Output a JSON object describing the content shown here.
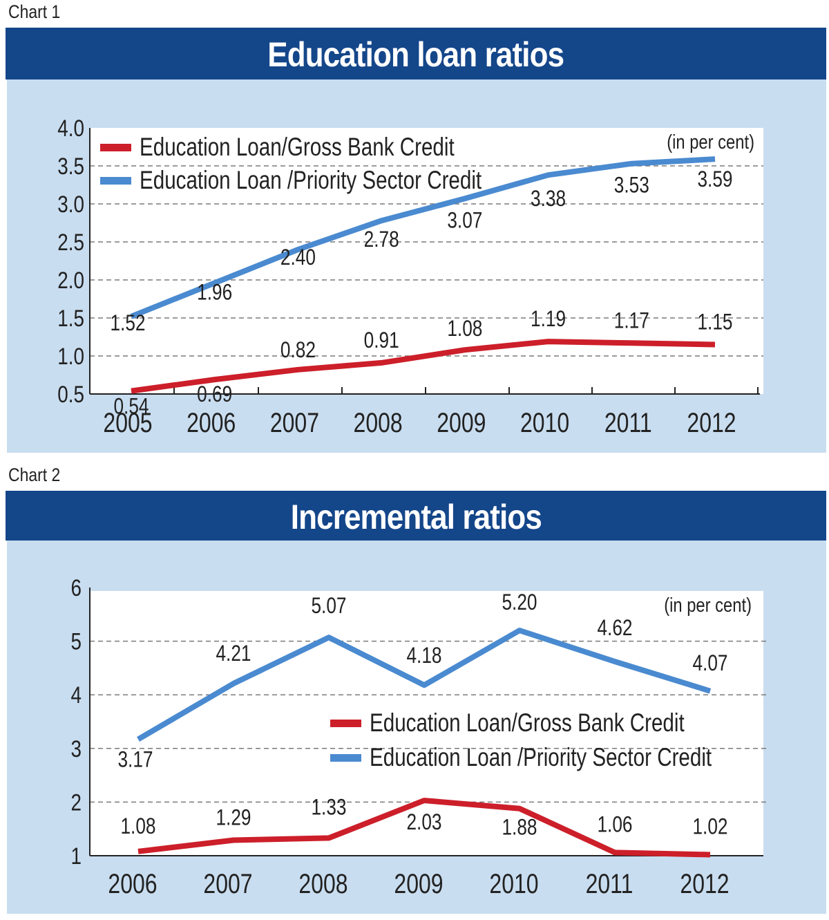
{
  "chart_data": [
    {
      "type": "line",
      "label": "Chart 1",
      "title": "Education loan ratios",
      "unit_note": "(in per cent)",
      "categories": [
        "2005",
        "2006",
        "2007",
        "2008",
        "2009",
        "2010",
        "2011",
        "2012"
      ],
      "ylim": [
        0.5,
        4.0
      ],
      "yticks": [
        "4.0",
        "3.5",
        "3.0",
        "2.5",
        "2.0",
        "1.5",
        "1.0",
        "0.5"
      ],
      "grid": true,
      "legend_position": "top-left",
      "series": [
        {
          "name": "Education Loan/Gross Bank Credit",
          "color": "#cc1f2a",
          "values": [
            0.54,
            0.69,
            0.82,
            0.91,
            1.08,
            1.19,
            1.17,
            1.15
          ],
          "labels": [
            "0.54",
            "0.69",
            "0.82",
            "0.91",
            "1.08",
            "1.19",
            "1.17",
            "1.15"
          ]
        },
        {
          "name": "Education Loan /Priority Sector Credit",
          "color": "#4a8ad0",
          "values": [
            1.52,
            1.96,
            2.4,
            2.78,
            3.07,
            3.38,
            3.53,
            3.59
          ],
          "labels": [
            "1.52",
            "1.96",
            "2.40",
            "2.78",
            "3.07",
            "3.38",
            "3.53",
            "3.59"
          ]
        }
      ]
    },
    {
      "type": "line",
      "label": "Chart 2",
      "title": "Incremental ratios",
      "unit_note": "(in per cent)",
      "categories": [
        "2006",
        "2007",
        "2008",
        "2009",
        "2010",
        "2011",
        "2012"
      ],
      "ylim": [
        1,
        6
      ],
      "yticks": [
        "6",
        "5",
        "4",
        "3",
        "2",
        "1"
      ],
      "grid": true,
      "legend_position": "center-right",
      "series": [
        {
          "name": "Education Loan/Gross Bank Credit",
          "color": "#cc1f2a",
          "values": [
            1.08,
            1.29,
            1.33,
            2.03,
            1.88,
            1.06,
            1.02
          ],
          "labels": [
            "1.08",
            "1.29",
            "1.33",
            "2.03",
            "1.88",
            "1.06",
            "1.02"
          ]
        },
        {
          "name": "Education Loan /Priority Sector Credit",
          "color": "#4a8ad0",
          "values": [
            3.17,
            4.21,
            5.07,
            4.18,
            5.2,
            4.62,
            4.07
          ],
          "labels": [
            "3.17",
            "4.21",
            "5.07",
            "4.18",
            "5.20",
            "4.62",
            "4.07"
          ]
        }
      ]
    }
  ]
}
